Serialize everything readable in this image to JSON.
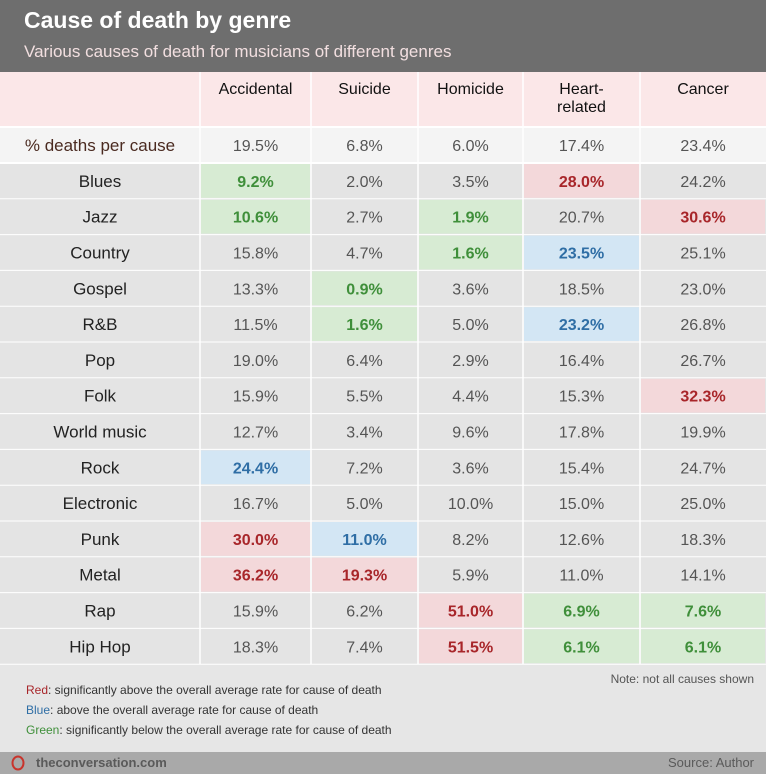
{
  "header": {
    "title": "Cause of death by genre",
    "subtitle": "Various causes of death for musicians of different genres"
  },
  "legend": {
    "red_key": "Red",
    "red_text": ": significantly above the overall average rate for cause of death",
    "blue_key": "Blue",
    "blue_text": ": above the overall average rate for cause of death",
    "green_key": "Green",
    "green_text": ": significantly below the overall average rate for cause of death"
  },
  "note": "Note: not all causes shown",
  "footer": {
    "brand": "theconversation.com",
    "source": "Source: Author",
    "brand_icon": "conversation-logo-icon"
  },
  "colors": {
    "header_bg": "#6e6e6e",
    "header_row_bg": "#fbe7e8",
    "red_highlight_bg": "#f3d8da",
    "red_text": "#a8262a",
    "blue_highlight_bg": "#d3e6f4",
    "blue_text": "#2f6ea5",
    "green_highlight_bg": "#d7ebd3",
    "green_text": "#3f8f3a",
    "footer_bg": "#a9a9a9"
  },
  "chart_data": {
    "type": "table",
    "columns": [
      "Accidental",
      "Suicide",
      "Homicide",
      "Heart-related",
      "Cancer"
    ],
    "column_header_lines": [
      [
        "Accidental"
      ],
      [
        "Suicide"
      ],
      [
        "Homicide"
      ],
      [
        "Heart-",
        "related"
      ],
      [
        "Cancer"
      ]
    ],
    "summary_row": {
      "label": "% deaths per cause",
      "values": [
        "19.5%",
        "6.8%",
        "6.0%",
        "17.4%",
        "23.4%"
      ]
    },
    "rows": [
      {
        "genre": "Blues",
        "values": [
          "9.2%",
          "2.0%",
          "3.5%",
          "28.0%",
          "24.2%"
        ],
        "highlights": [
          "green",
          "",
          "",
          "red",
          ""
        ]
      },
      {
        "genre": "Jazz",
        "values": [
          "10.6%",
          "2.7%",
          "1.9%",
          "20.7%",
          "30.6%"
        ],
        "highlights": [
          "green",
          "",
          "green",
          "",
          "red"
        ]
      },
      {
        "genre": "Country",
        "values": [
          "15.8%",
          "4.7%",
          "1.6%",
          "23.5%",
          "25.1%"
        ],
        "highlights": [
          "",
          "",
          "green",
          "blue",
          ""
        ]
      },
      {
        "genre": "Gospel",
        "values": [
          "13.3%",
          "0.9%",
          "3.6%",
          "18.5%",
          "23.0%"
        ],
        "highlights": [
          "",
          "green",
          "",
          "",
          ""
        ]
      },
      {
        "genre": "R&B",
        "values": [
          "11.5%",
          "1.6%",
          "5.0%",
          "23.2%",
          "26.8%"
        ],
        "highlights": [
          "",
          "green",
          "",
          "blue",
          ""
        ]
      },
      {
        "genre": "Pop",
        "values": [
          "19.0%",
          "6.4%",
          "2.9%",
          "16.4%",
          "26.7%"
        ],
        "highlights": [
          "",
          "",
          "",
          "",
          ""
        ]
      },
      {
        "genre": "Folk",
        "values": [
          "15.9%",
          "5.5%",
          "4.4%",
          "15.3%",
          "32.3%"
        ],
        "highlights": [
          "",
          "",
          "",
          "",
          "red"
        ]
      },
      {
        "genre": "World music",
        "values": [
          "12.7%",
          "3.4%",
          "9.6%",
          "17.8%",
          "19.9%"
        ],
        "highlights": [
          "",
          "",
          "",
          "",
          ""
        ]
      },
      {
        "genre": "Rock",
        "values": [
          "24.4%",
          "7.2%",
          "3.6%",
          "15.4%",
          "24.7%"
        ],
        "highlights": [
          "blue",
          "",
          "",
          "",
          ""
        ]
      },
      {
        "genre": "Electronic",
        "values": [
          "16.7%",
          "5.0%",
          "10.0%",
          "15.0%",
          "25.0%"
        ],
        "highlights": [
          "",
          "",
          "",
          "",
          ""
        ]
      },
      {
        "genre": "Punk",
        "values": [
          "30.0%",
          "11.0%",
          "8.2%",
          "12.6%",
          "18.3%"
        ],
        "highlights": [
          "red",
          "blue",
          "",
          "",
          ""
        ]
      },
      {
        "genre": "Metal",
        "values": [
          "36.2%",
          "19.3%",
          "5.9%",
          "11.0%",
          "14.1%"
        ],
        "highlights": [
          "red",
          "red",
          "",
          "",
          ""
        ]
      },
      {
        "genre": "Rap",
        "values": [
          "15.9%",
          "6.2%",
          "51.0%",
          "6.9%",
          "7.6%"
        ],
        "highlights": [
          "",
          "",
          "red",
          "green",
          "green"
        ]
      },
      {
        "genre": "Hip Hop",
        "values": [
          "18.3%",
          "7.4%",
          "51.5%",
          "6.1%",
          "6.1%"
        ],
        "highlights": [
          "",
          "",
          "red",
          "green",
          "green"
        ]
      }
    ]
  }
}
